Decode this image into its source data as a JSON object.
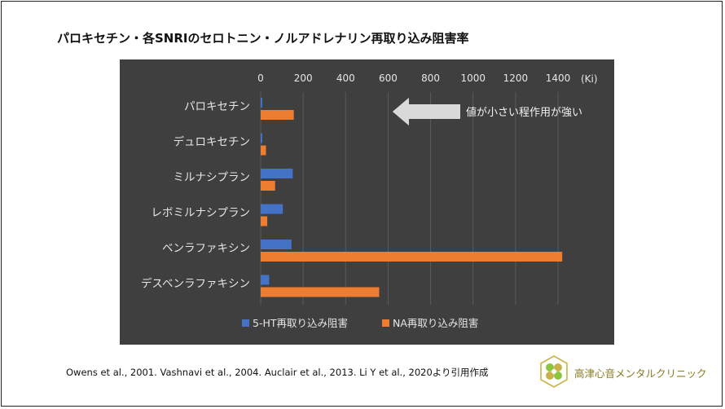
{
  "title": "パロキセチン・各SNRIのセロトニン・ノルアドレナリン再取り込み阻害率",
  "citation": "Owens et al., 2001. Vashnavi et al., 2004. Auclair et al., 2013. Li Y et al., 2020より引用作成",
  "logo": {
    "text": "高津心音メンタルクリニック"
  },
  "colors": {
    "background": "#3f3f3f",
    "ht": "#4472c4",
    "na": "#ed7d31",
    "arrow": "#d9d9d9"
  },
  "chart_data": {
    "type": "bar",
    "orientation": "horizontal",
    "unit": "(Ki)",
    "xlim": [
      0,
      1400
    ],
    "xticks": [
      "0",
      "200",
      "400",
      "600",
      "800",
      "1000",
      "1200",
      "1400"
    ],
    "categories": [
      "パロキセチン",
      "デュロキセチン",
      "ミルナシプラン",
      "レボミルナシプラン",
      "ベンラファキシン",
      "デスベンラファキシン"
    ],
    "series": [
      {
        "name": "5-HT再取り込み阻害",
        "color": "#4472c4",
        "values": [
          1,
          3,
          151,
          104,
          145,
          40
        ]
      },
      {
        "name": "NA再取り込み阻害",
        "color": "#ed7d31",
        "values": [
          156,
          25,
          68,
          31,
          1420,
          558
        ]
      }
    ],
    "annotation": "値が小さい程作用が強い",
    "grid": true,
    "legend": "bottom"
  }
}
